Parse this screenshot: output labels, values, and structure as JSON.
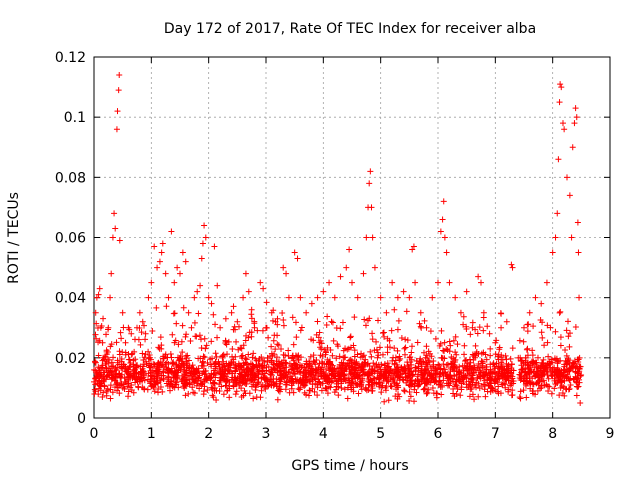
{
  "chart_data": {
    "type": "scatter",
    "title": "Day 172 of 2017, Rate Of TEC Index for receiver alba",
    "xlabel": "GPS time / hours",
    "ylabel": "ROTI / TECUs",
    "xlim": [
      0,
      9
    ],
    "ylim": [
      0,
      0.12
    ],
    "xticks": [
      0,
      1,
      2,
      3,
      4,
      5,
      6,
      7,
      8,
      9
    ],
    "yticks": [
      0,
      0.02,
      0.04,
      0.06,
      0.08,
      0.1,
      0.12
    ],
    "xtick_labels": [
      "0",
      "1",
      "2",
      "3",
      "4",
      "5",
      "6",
      "7",
      "8",
      "9"
    ],
    "ytick_labels": [
      "0",
      "0.02",
      "0.04",
      "0.06",
      "0.08",
      "0.1",
      "0.12"
    ],
    "grid": true,
    "marker": "+",
    "series_color": "#ff0000",
    "series": [
      {
        "name": "ROTI",
        "points": [
          [
            0.0,
            0.012
          ],
          [
            0.03,
            0.035
          ],
          [
            0.05,
            0.04
          ],
          [
            0.08,
            0.041
          ],
          [
            0.1,
            0.043
          ],
          [
            0.12,
            0.03
          ],
          [
            0.15,
            0.025
          ],
          [
            0.18,
            0.02
          ],
          [
            0.2,
            0.018
          ],
          [
            0.22,
            0.022
          ],
          [
            0.25,
            0.03
          ],
          [
            0.28,
            0.04
          ],
          [
            0.3,
            0.048
          ],
          [
            0.33,
            0.06
          ],
          [
            0.35,
            0.068
          ],
          [
            0.37,
            0.063
          ],
          [
            0.4,
            0.096
          ],
          [
            0.41,
            0.102
          ],
          [
            0.43,
            0.109
          ],
          [
            0.44,
            0.114
          ],
          [
            0.45,
            0.059
          ],
          [
            0.5,
            0.035
          ],
          [
            0.55,
            0.025
          ],
          [
            0.6,
            0.03
          ],
          [
            0.65,
            0.028
          ],
          [
            0.7,
            0.022
          ],
          [
            0.75,
            0.03
          ],
          [
            0.8,
            0.035
          ],
          [
            0.85,
            0.032
          ],
          [
            0.9,
            0.028
          ],
          [
            0.95,
            0.04
          ],
          [
            1.0,
            0.045
          ],
          [
            1.05,
            0.057
          ],
          [
            1.1,
            0.05
          ],
          [
            1.15,
            0.052
          ],
          [
            1.18,
            0.055
          ],
          [
            1.2,
            0.058
          ],
          [
            1.25,
            0.048
          ],
          [
            1.3,
            0.04
          ],
          [
            1.35,
            0.062
          ],
          [
            1.4,
            0.045
          ],
          [
            1.45,
            0.05
          ],
          [
            1.5,
            0.048
          ],
          [
            1.55,
            0.055
          ],
          [
            1.6,
            0.052
          ],
          [
            1.65,
            0.035
          ],
          [
            1.7,
            0.03
          ],
          [
            1.75,
            0.04
          ],
          [
            1.8,
            0.042
          ],
          [
            1.85,
            0.044
          ],
          [
            1.88,
            0.053
          ],
          [
            1.9,
            0.058
          ],
          [
            1.92,
            0.064
          ],
          [
            1.95,
            0.06
          ],
          [
            2.0,
            0.04
          ],
          [
            2.05,
            0.038
          ],
          [
            2.1,
            0.057
          ],
          [
            2.15,
            0.044
          ],
          [
            2.2,
            0.03
          ],
          [
            2.3,
            0.033
          ],
          [
            2.4,
            0.035
          ],
          [
            2.5,
            0.032
          ],
          [
            2.6,
            0.04
          ],
          [
            2.65,
            0.048
          ],
          [
            2.7,
            0.042
          ],
          [
            2.75,
            0.036
          ],
          [
            2.8,
            0.03
          ],
          [
            2.9,
            0.045
          ],
          [
            2.95,
            0.043
          ],
          [
            3.0,
            0.03
          ],
          [
            3.1,
            0.035
          ],
          [
            3.2,
            0.033
          ],
          [
            3.3,
            0.05
          ],
          [
            3.35,
            0.048
          ],
          [
            3.4,
            0.04
          ],
          [
            3.5,
            0.055
          ],
          [
            3.55,
            0.053
          ],
          [
            3.6,
            0.04
          ],
          [
            3.7,
            0.035
          ],
          [
            3.8,
            0.038
          ],
          [
            3.9,
            0.04
          ],
          [
            4.0,
            0.042
          ],
          [
            4.1,
            0.045
          ],
          [
            4.2,
            0.04
          ],
          [
            4.3,
            0.047
          ],
          [
            4.4,
            0.05
          ],
          [
            4.45,
            0.056
          ],
          [
            4.5,
            0.045
          ],
          [
            4.6,
            0.04
          ],
          [
            4.7,
            0.048
          ],
          [
            4.75,
            0.06
          ],
          [
            4.78,
            0.07
          ],
          [
            4.8,
            0.078
          ],
          [
            4.82,
            0.082
          ],
          [
            4.84,
            0.07
          ],
          [
            4.86,
            0.06
          ],
          [
            4.9,
            0.05
          ],
          [
            5.0,
            0.04
          ],
          [
            5.1,
            0.035
          ],
          [
            5.2,
            0.045
          ],
          [
            5.3,
            0.04
          ],
          [
            5.4,
            0.042
          ],
          [
            5.5,
            0.04
          ],
          [
            5.55,
            0.056
          ],
          [
            5.58,
            0.057
          ],
          [
            5.6,
            0.045
          ],
          [
            5.7,
            0.035
          ],
          [
            5.8,
            0.03
          ],
          [
            5.9,
            0.04
          ],
          [
            6.0,
            0.045
          ],
          [
            6.05,
            0.062
          ],
          [
            6.08,
            0.066
          ],
          [
            6.1,
            0.072
          ],
          [
            6.12,
            0.06
          ],
          [
            6.15,
            0.055
          ],
          [
            6.2,
            0.045
          ],
          [
            6.3,
            0.04
          ],
          [
            6.4,
            0.035
          ],
          [
            6.5,
            0.042
          ],
          [
            6.6,
            0.03
          ],
          [
            6.7,
            0.047
          ],
          [
            6.75,
            0.045
          ],
          [
            6.8,
            0.035
          ],
          [
            6.9,
            0.028
          ],
          [
            7.0,
            0.025
          ],
          [
            7.1,
            0.03
          ],
          [
            7.2,
            0.032
          ],
          [
            7.28,
            0.051
          ],
          [
            7.3,
            0.05
          ],
          [
            7.4,
            0.02
          ],
          [
            7.5,
            0.03
          ],
          [
            7.6,
            0.035
          ],
          [
            7.7,
            0.04
          ],
          [
            7.8,
            0.038
          ],
          [
            7.9,
            0.045
          ],
          [
            8.0,
            0.055
          ],
          [
            8.05,
            0.06
          ],
          [
            8.08,
            0.068
          ],
          [
            8.1,
            0.086
          ],
          [
            8.12,
            0.105
          ],
          [
            8.13,
            0.111
          ],
          [
            8.15,
            0.11
          ],
          [
            8.18,
            0.098
          ],
          [
            8.2,
            0.096
          ],
          [
            8.25,
            0.08
          ],
          [
            8.3,
            0.074
          ],
          [
            8.33,
            0.06
          ],
          [
            8.35,
            0.09
          ],
          [
            8.38,
            0.098
          ],
          [
            8.4,
            0.103
          ],
          [
            8.42,
            0.1
          ],
          [
            8.44,
            0.065
          ],
          [
            8.45,
            0.055
          ],
          [
            8.46,
            0.04
          ],
          [
            8.47,
            0.02
          ],
          [
            8.48,
            0.005
          ]
        ]
      }
    ]
  }
}
